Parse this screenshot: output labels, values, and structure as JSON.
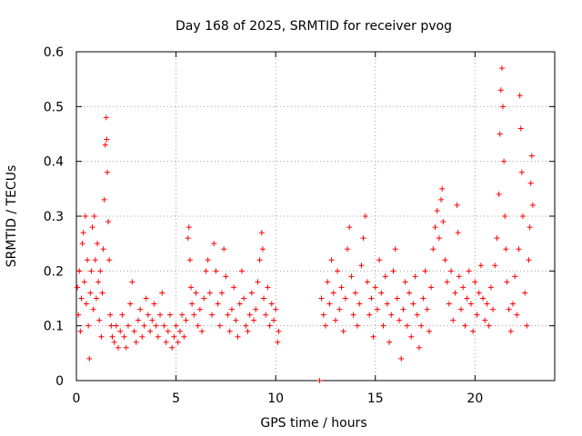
{
  "chart_data": {
    "type": "scatter",
    "title": "Day 168 of 2025, SRMTID for receiver pvog",
    "xlabel": "GPS time / hours",
    "ylabel": "SRMTID / TECUs",
    "xlim": [
      0,
      24
    ],
    "ylim": [
      0,
      0.6
    ],
    "xticks": [
      0,
      5,
      10,
      15,
      20
    ],
    "yticks": [
      0,
      0.1,
      0.2,
      0.3,
      0.4,
      0.5,
      0.6
    ],
    "xtick_labels": [
      "0",
      "5",
      "10",
      "15",
      "20"
    ],
    "ytick_labels": [
      "0",
      "0.1",
      "0.2",
      "0.3",
      "0.4",
      "0.5",
      "0.6"
    ],
    "grid": true,
    "marker": "+",
    "color": "#ff0000",
    "series": [
      {
        "name": "SRMTID",
        "points": [
          [
            0.05,
            0.17
          ],
          [
            0.1,
            0.12
          ],
          [
            0.15,
            0.2
          ],
          [
            0.2,
            0.09
          ],
          [
            0.25,
            0.15
          ],
          [
            0.3,
            0.25
          ],
          [
            0.35,
            0.27
          ],
          [
            0.4,
            0.18
          ],
          [
            0.45,
            0.3
          ],
          [
            0.5,
            0.14
          ],
          [
            0.55,
            0.22
          ],
          [
            0.6,
            0.1
          ],
          [
            0.65,
            0.04
          ],
          [
            0.7,
            0.16
          ],
          [
            0.75,
            0.2
          ],
          [
            0.8,
            0.28
          ],
          [
            0.85,
            0.13
          ],
          [
            0.9,
            0.3
          ],
          [
            0.95,
            0.22
          ],
          [
            1.0,
            0.15
          ],
          [
            1.05,
            0.25
          ],
          [
            1.1,
            0.18
          ],
          [
            1.15,
            0.11
          ],
          [
            1.2,
            0.2
          ],
          [
            1.25,
            0.08
          ],
          [
            1.3,
            0.16
          ],
          [
            1.35,
            0.24
          ],
          [
            1.4,
            0.33
          ],
          [
            1.45,
            0.43
          ],
          [
            1.5,
            0.48
          ],
          [
            1.52,
            0.44
          ],
          [
            1.55,
            0.38
          ],
          [
            1.6,
            0.29
          ],
          [
            1.65,
            0.22
          ],
          [
            1.7,
            0.12
          ],
          [
            1.75,
            0.1
          ],
          [
            1.8,
            0.08
          ],
          [
            1.9,
            0.07
          ],
          [
            2.0,
            0.1
          ],
          [
            2.1,
            0.06
          ],
          [
            2.2,
            0.09
          ],
          [
            2.3,
            0.12
          ],
          [
            2.4,
            0.08
          ],
          [
            2.5,
            0.06
          ],
          [
            2.6,
            0.1
          ],
          [
            2.7,
            0.14
          ],
          [
            2.8,
            0.18
          ],
          [
            2.9,
            0.09
          ],
          [
            3.0,
            0.07
          ],
          [
            3.1,
            0.11
          ],
          [
            3.2,
            0.13
          ],
          [
            3.3,
            0.08
          ],
          [
            3.4,
            0.1
          ],
          [
            3.5,
            0.15
          ],
          [
            3.6,
            0.12
          ],
          [
            3.7,
            0.09
          ],
          [
            3.8,
            0.11
          ],
          [
            3.9,
            0.14
          ],
          [
            4.0,
            0.1
          ],
          [
            4.1,
            0.08
          ],
          [
            4.2,
            0.12
          ],
          [
            4.3,
            0.16
          ],
          [
            4.4,
            0.1
          ],
          [
            4.5,
            0.07
          ],
          [
            4.6,
            0.09
          ],
          [
            4.7,
            0.12
          ],
          [
            4.8,
            0.06
          ],
          [
            4.9,
            0.08
          ],
          [
            5.0,
            0.1
          ],
          [
            5.1,
            0.07
          ],
          [
            5.2,
            0.09
          ],
          [
            5.3,
            0.12
          ],
          [
            5.4,
            0.08
          ],
          [
            5.5,
            0.11
          ],
          [
            5.6,
            0.26
          ],
          [
            5.65,
            0.28
          ],
          [
            5.7,
            0.22
          ],
          [
            5.75,
            0.17
          ],
          [
            5.8,
            0.14
          ],
          [
            5.9,
            0.12
          ],
          [
            6.0,
            0.16
          ],
          [
            6.1,
            0.1
          ],
          [
            6.2,
            0.13
          ],
          [
            6.3,
            0.09
          ],
          [
            6.4,
            0.15
          ],
          [
            6.5,
            0.2
          ],
          [
            6.6,
            0.22
          ],
          [
            6.7,
            0.16
          ],
          [
            6.8,
            0.12
          ],
          [
            6.9,
            0.25
          ],
          [
            7.0,
            0.2
          ],
          [
            7.1,
            0.14
          ],
          [
            7.2,
            0.1
          ],
          [
            7.3,
            0.16
          ],
          [
            7.4,
            0.24
          ],
          [
            7.5,
            0.19
          ],
          [
            7.6,
            0.12
          ],
          [
            7.7,
            0.09
          ],
          [
            7.8,
            0.13
          ],
          [
            7.9,
            0.17
          ],
          [
            8.0,
            0.11
          ],
          [
            8.1,
            0.08
          ],
          [
            8.2,
            0.14
          ],
          [
            8.3,
            0.2
          ],
          [
            8.4,
            0.15
          ],
          [
            8.5,
            0.1
          ],
          [
            8.6,
            0.09
          ],
          [
            8.7,
            0.12
          ],
          [
            8.8,
            0.16
          ],
          [
            8.9,
            0.11
          ],
          [
            9.0,
            0.13
          ],
          [
            9.1,
            0.18
          ],
          [
            9.2,
            0.22
          ],
          [
            9.3,
            0.27
          ],
          [
            9.35,
            0.24
          ],
          [
            9.4,
            0.15
          ],
          [
            9.5,
            0.12
          ],
          [
            9.6,
            0.17
          ],
          [
            9.7,
            0.1
          ],
          [
            9.8,
            0.14
          ],
          [
            9.9,
            0.11
          ],
          [
            10.0,
            0.13
          ],
          [
            10.1,
            0.07
          ],
          [
            10.15,
            0.09
          ],
          [
            12.2,
            0.0
          ],
          [
            12.3,
            0.15
          ],
          [
            12.4,
            0.12
          ],
          [
            12.5,
            0.1
          ],
          [
            12.6,
            0.18
          ],
          [
            12.7,
            0.14
          ],
          [
            12.8,
            0.22
          ],
          [
            12.9,
            0.16
          ],
          [
            13.0,
            0.11
          ],
          [
            13.1,
            0.2
          ],
          [
            13.2,
            0.13
          ],
          [
            13.3,
            0.17
          ],
          [
            13.4,
            0.09
          ],
          [
            13.5,
            0.15
          ],
          [
            13.6,
            0.24
          ],
          [
            13.7,
            0.28
          ],
          [
            13.8,
            0.19
          ],
          [
            13.9,
            0.12
          ],
          [
            14.0,
            0.16
          ],
          [
            14.1,
            0.1
          ],
          [
            14.2,
            0.14
          ],
          [
            14.3,
            0.21
          ],
          [
            14.4,
            0.26
          ],
          [
            14.5,
            0.3
          ],
          [
            14.6,
            0.18
          ],
          [
            14.7,
            0.12
          ],
          [
            14.8,
            0.15
          ],
          [
            14.9,
            0.08
          ],
          [
            15.0,
            0.17
          ],
          [
            15.1,
            0.13
          ],
          [
            15.2,
            0.22
          ],
          [
            15.3,
            0.16
          ],
          [
            15.4,
            0.1
          ],
          [
            15.5,
            0.19
          ],
          [
            15.6,
            0.14
          ],
          [
            15.7,
            0.07
          ],
          [
            15.8,
            0.12
          ],
          [
            15.9,
            0.2
          ],
          [
            16.0,
            0.24
          ],
          [
            16.1,
            0.15
          ],
          [
            16.2,
            0.11
          ],
          [
            16.3,
            0.04
          ],
          [
            16.4,
            0.13
          ],
          [
            16.5,
            0.18
          ],
          [
            16.6,
            0.1
          ],
          [
            16.7,
            0.16
          ],
          [
            16.8,
            0.08
          ],
          [
            16.9,
            0.14
          ],
          [
            17.0,
            0.19
          ],
          [
            17.1,
            0.12
          ],
          [
            17.2,
            0.06
          ],
          [
            17.3,
            0.1
          ],
          [
            17.4,
            0.15
          ],
          [
            17.5,
            0.2
          ],
          [
            17.6,
            0.13
          ],
          [
            17.7,
            0.09
          ],
          [
            17.8,
            0.17
          ],
          [
            17.9,
            0.24
          ],
          [
            18.0,
            0.28
          ],
          [
            18.1,
            0.31
          ],
          [
            18.2,
            0.26
          ],
          [
            18.3,
            0.33
          ],
          [
            18.35,
            0.35
          ],
          [
            18.4,
            0.29
          ],
          [
            18.5,
            0.22
          ],
          [
            18.6,
            0.18
          ],
          [
            18.7,
            0.14
          ],
          [
            18.8,
            0.2
          ],
          [
            18.9,
            0.11
          ],
          [
            19.0,
            0.16
          ],
          [
            19.1,
            0.32
          ],
          [
            19.15,
            0.27
          ],
          [
            19.2,
            0.19
          ],
          [
            19.3,
            0.13
          ],
          [
            19.4,
            0.17
          ],
          [
            19.5,
            0.1
          ],
          [
            19.6,
            0.15
          ],
          [
            19.7,
            0.2
          ],
          [
            19.8,
            0.14
          ],
          [
            19.9,
            0.09
          ],
          [
            20.0,
            0.18
          ],
          [
            20.1,
            0.12
          ],
          [
            20.2,
            0.16
          ],
          [
            20.3,
            0.21
          ],
          [
            20.4,
            0.15
          ],
          [
            20.5,
            0.11
          ],
          [
            20.6,
            0.14
          ],
          [
            20.7,
            0.1
          ],
          [
            20.8,
            0.17
          ],
          [
            20.9,
            0.13
          ],
          [
            21.0,
            0.21
          ],
          [
            21.1,
            0.26
          ],
          [
            21.2,
            0.34
          ],
          [
            21.25,
            0.45
          ],
          [
            21.3,
            0.53
          ],
          [
            21.35,
            0.57
          ],
          [
            21.4,
            0.5
          ],
          [
            21.45,
            0.4
          ],
          [
            21.5,
            0.3
          ],
          [
            21.55,
            0.24
          ],
          [
            21.6,
            0.18
          ],
          [
            21.7,
            0.13
          ],
          [
            21.8,
            0.09
          ],
          [
            21.9,
            0.14
          ],
          [
            22.0,
            0.19
          ],
          [
            22.1,
            0.12
          ],
          [
            22.2,
            0.24
          ],
          [
            22.25,
            0.52
          ],
          [
            22.3,
            0.46
          ],
          [
            22.35,
            0.38
          ],
          [
            22.4,
            0.3
          ],
          [
            22.5,
            0.16
          ],
          [
            22.6,
            0.1
          ],
          [
            22.7,
            0.22
          ],
          [
            22.75,
            0.28
          ],
          [
            22.8,
            0.36
          ],
          [
            22.85,
            0.41
          ],
          [
            22.9,
            0.32
          ]
        ]
      }
    ]
  }
}
